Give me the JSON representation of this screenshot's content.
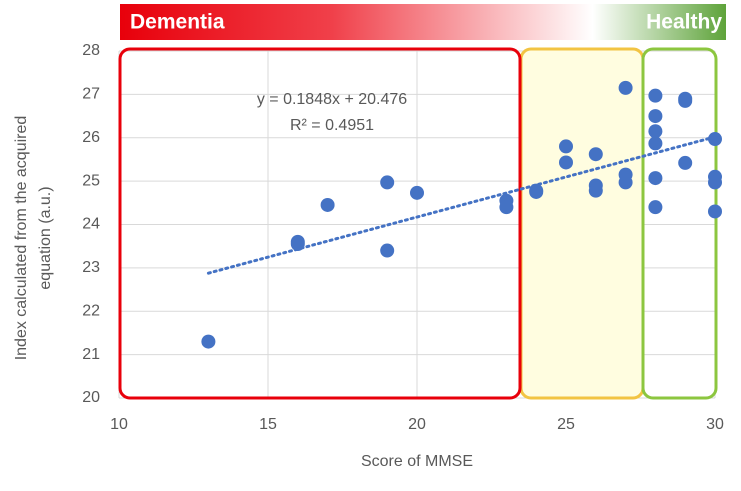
{
  "banner": {
    "left": "Dementia",
    "right": "Healthy"
  },
  "chart_data": {
    "type": "scatter",
    "xlabel": "Score of MMSE",
    "ylabel": [
      "Index calculated from the acquired",
      "equation (a.u.)"
    ],
    "annotations": [
      "y = 0.1848x + 20.476",
      "R² = 0.4951"
    ],
    "xlim": [
      10,
      30
    ],
    "xticks": [
      10,
      15,
      20,
      25,
      30
    ],
    "ylim": [
      20,
      28
    ],
    "yticks": [
      20,
      21,
      22,
      23,
      24,
      25,
      26,
      27,
      28
    ],
    "grid": true,
    "series": [
      {
        "color": "#4472c4",
        "x": [
          13,
          16,
          16,
          17,
          19,
          19,
          20,
          23,
          23,
          24,
          24,
          25,
          25,
          26,
          26,
          26,
          27,
          27,
          27,
          28,
          28,
          28,
          28,
          28,
          28,
          29,
          29,
          29,
          30,
          30,
          30,
          30
        ],
        "values": [
          21.3,
          23.6,
          23.55,
          24.45,
          24.97,
          23.4,
          24.73,
          24.55,
          24.4,
          24.75,
          24.78,
          25.8,
          25.43,
          25.62,
          24.9,
          24.78,
          27.15,
          25.15,
          24.97,
          26.97,
          26.5,
          26.15,
          25.87,
          25.07,
          24.4,
          26.9,
          26.85,
          25.42,
          25.97,
          25.1,
          24.97,
          24.3
        ]
      }
    ],
    "trendline": {
      "color": "#4472c4",
      "x": [
        13,
        30
      ],
      "values": [
        22.878,
        26.02
      ]
    }
  }
}
